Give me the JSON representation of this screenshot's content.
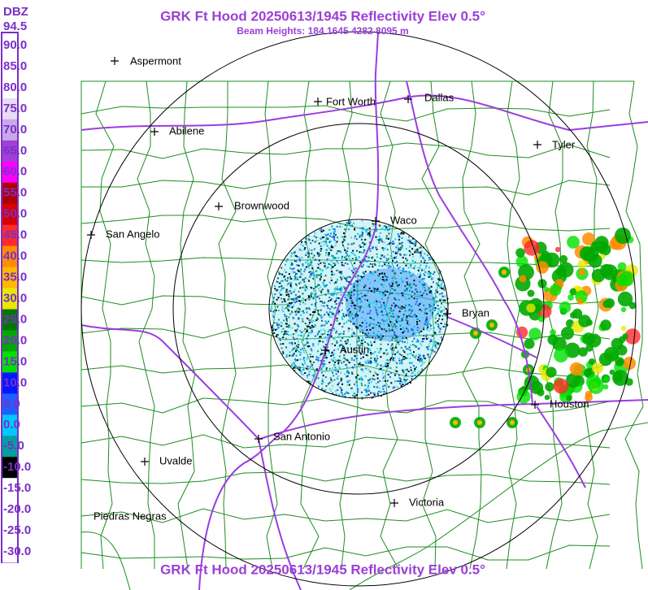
{
  "header": {
    "title": "GRK Ft Hood 20250613/1945 Reflectivity Elev 0.5°",
    "subtitle": "Beam Heights: 184 1645 4282 8095 m"
  },
  "footer": {
    "title": "GRK Ft Hood 20250613/1945 Reflectivity Elev 0.5°"
  },
  "scale": {
    "unit": "DBZ",
    "labels": [
      "94.5",
      "90.0",
      "85.0",
      "80.0",
      "75.0",
      "70.0",
      "65.0",
      "60.0",
      "55.0",
      "50.0",
      "45.0",
      "40.0",
      "35.0",
      "30.0",
      "25.0",
      "20.0",
      "15.0",
      "10.0",
      "5.0",
      "0.0",
      "-5.0",
      "-10.0",
      "-15.0",
      "-20.0",
      "-25.0",
      "-30.0"
    ],
    "colors": [
      "#ffffff",
      "#ffffff",
      "#ffffff",
      "#e8dcf4",
      "#c8a8e8",
      "#a040d8",
      "#ff00ff",
      "#b00000",
      "#d80000",
      "#ff2a2a",
      "#ff8c00",
      "#ffb800",
      "#e8e800",
      "#007800",
      "#00a800",
      "#00e000",
      "#0018ff",
      "#1e60ff",
      "#00c8ff",
      "#00a0a0",
      "#000000",
      "#ffffff",
      "#ffffff",
      "#ffffff",
      "#ffffff"
    ]
  },
  "cities": [
    "Aspermont",
    "Fort Worth",
    "Dallas",
    "Abilene",
    "Tyler",
    "Brownwood",
    "Waco",
    "San Angelo",
    "Bryan",
    "Austin",
    "Houston",
    "San Antonio",
    "Uvalde",
    "Victoria",
    "Piedras Negras"
  ]
}
